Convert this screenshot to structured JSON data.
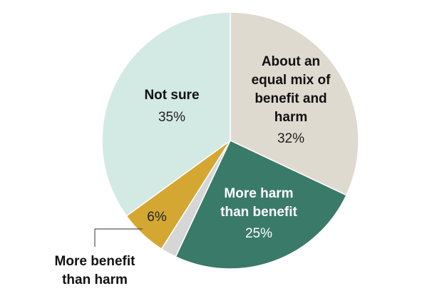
{
  "chart_data": {
    "type": "pie",
    "slices": [
      {
        "name": "About an equal mix of benefit and harm",
        "name_lines": [
          "About an",
          "equal mix of",
          "benefit and",
          "harm"
        ],
        "value": 32,
        "value_label": "32%",
        "color": "#dedad0",
        "label_color": "#111111",
        "value_color": "#222222"
      },
      {
        "name": "More harm than benefit",
        "name_lines": [
          "More harm",
          "than benefit"
        ],
        "value": 25,
        "value_label": "25%",
        "color": "#3a7a68",
        "label_color": "#ffffff",
        "value_color": "#ffffff"
      },
      {
        "name": "",
        "name_lines": [],
        "value": 2,
        "value_label": "",
        "color": "#d6d6d6",
        "label_color": "#111111",
        "value_color": "#222222"
      },
      {
        "name": "More benefit than harm",
        "name_lines": [
          "More benefit",
          "than harm"
        ],
        "value": 6,
        "value_label": "6%",
        "color": "#d3a732",
        "label_color": "#111111",
        "value_color": "#222222"
      },
      {
        "name": "Not sure",
        "name_lines": [
          "Not sure"
        ],
        "value": 35,
        "value_label": "35%",
        "color": "#d3e9e4",
        "label_color": "#111111",
        "value_color": "#222222"
      }
    ],
    "start": "12 o'clock",
    "direction": "clockwise"
  }
}
